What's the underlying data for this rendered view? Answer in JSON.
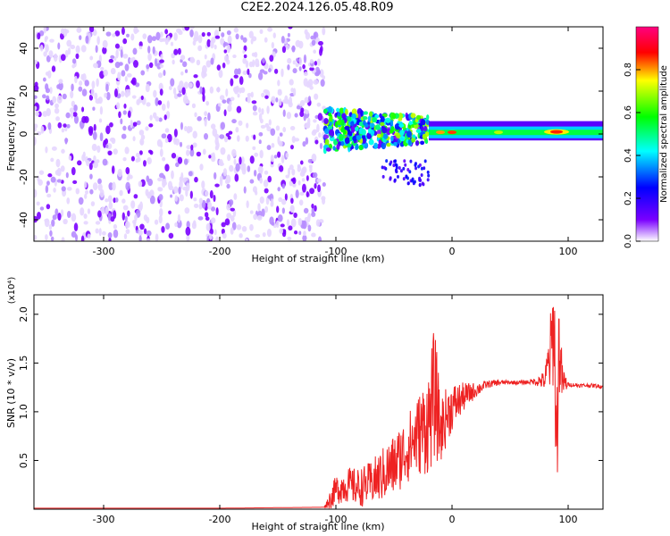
{
  "title": "C2E2.2024.126.05.48.R09",
  "chart_data": [
    {
      "type": "heatmap",
      "xlabel": "Height of straight line (km)",
      "ylabel": "Frequency (Hz)",
      "xlim": [
        -360,
        130
      ],
      "ylim": [
        -50,
        50
      ],
      "x_ticks": [
        -300,
        -200,
        -100,
        0,
        100
      ],
      "y_ticks": [
        -40,
        -20,
        0,
        20,
        40
      ],
      "colorbar": {
        "label": "Normalized spectral amplitude",
        "range": [
          0,
          1
        ],
        "ticks": [
          "0.0",
          "0.2",
          "0.4",
          "0.6",
          "0.8"
        ],
        "colors": [
          "#ffffff",
          "#7a00ff",
          "#0000ff",
          "#00ffff",
          "#00ff00",
          "#ffff00",
          "#ff0000",
          "#ff0080"
        ]
      },
      "regions": [
        {
          "x": [
            -360,
            -110
          ],
          "freq": [
            -50,
            50
          ],
          "amplitude": 0.08,
          "pattern": "noise"
        },
        {
          "x": [
            -110,
            -20
          ],
          "freq": [
            -25,
            20
          ],
          "amplitude": 0.4,
          "pattern": "scattered"
        },
        {
          "x": [
            -20,
            130
          ],
          "freq": [
            -3,
            4
          ],
          "amplitude": 0.55,
          "pattern": "band"
        },
        {
          "x": [
            80,
            100
          ],
          "freq": [
            -1,
            2
          ],
          "amplitude": 0.9,
          "pattern": "peak"
        }
      ],
      "grid": false
    },
    {
      "type": "line",
      "xlabel": "Height of straight line (km)",
      "ylabel": "SNR (10 * v/v)",
      "y_multiplier": "(x10⁴)",
      "xlim": [
        -360,
        130
      ],
      "ylim": [
        0,
        2.2
      ],
      "x_ticks": [
        -300,
        -200,
        -100,
        0,
        100
      ],
      "y_ticks": [
        0.5,
        1.0,
        1.5,
        2.0
      ],
      "series": [
        {
          "color": "#ee2222",
          "x": [
            -360,
            -300,
            -200,
            -110,
            -105,
            -100,
            -90,
            -80,
            -70,
            -60,
            -50,
            -40,
            -30,
            -20,
            -15,
            -10,
            -5,
            0,
            10,
            20,
            30,
            40,
            50,
            60,
            70,
            80,
            85,
            88,
            90,
            92,
            95,
            100,
            110,
            120,
            130
          ],
          "y": [
            0.01,
            0.01,
            0.01,
            0.02,
            0.1,
            0.2,
            0.25,
            0.22,
            0.27,
            0.35,
            0.45,
            0.6,
            0.75,
            0.9,
            1.2,
            0.8,
            0.95,
            1.05,
            1.15,
            1.22,
            1.28,
            1.3,
            1.3,
            1.3,
            1.31,
            1.32,
            1.6,
            1.9,
            0.5,
            1.7,
            1.3,
            1.28,
            1.27,
            1.27,
            1.26
          ],
          "amplitude": [
            0,
            0,
            0,
            0,
            0.1,
            0.15,
            0.18,
            0.2,
            0.22,
            0.28,
            0.32,
            0.35,
            0.4,
            0.55,
            0.7,
            0.35,
            0.3,
            0.25,
            0.15,
            0.08,
            0.04,
            0.03,
            0.02,
            0.02,
            0.03,
            0.1,
            0.45,
            0.6,
            0.7,
            0.55,
            0.2,
            0.02,
            0.02,
            0.02,
            0.02
          ]
        }
      ]
    }
  ]
}
